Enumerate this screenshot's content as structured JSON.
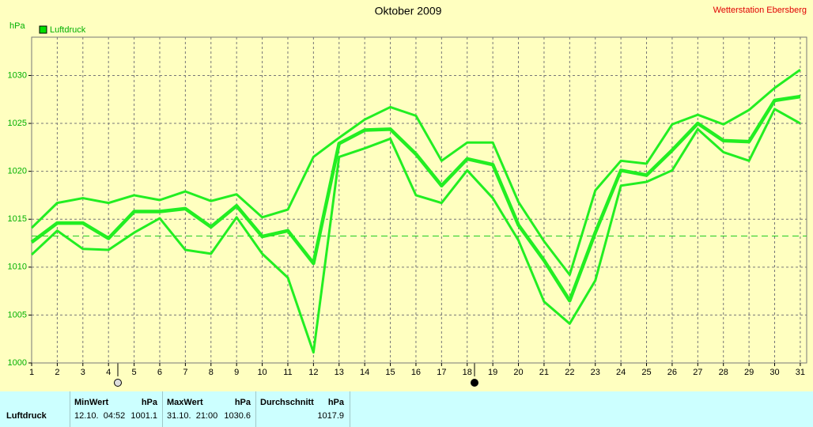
{
  "chart_data": {
    "type": "line",
    "title": "Oktober 2009",
    "station": "Wetterstation Ebersberg",
    "y_label": "hPa",
    "legend": "Luftdruck",
    "legend_color": "#00e000",
    "x": [
      1,
      2,
      3,
      4,
      5,
      6,
      7,
      8,
      9,
      10,
      11,
      12,
      13,
      14,
      15,
      16,
      17,
      18,
      19,
      20,
      21,
      22,
      23,
      24,
      25,
      26,
      27,
      28,
      29,
      30,
      31
    ],
    "xlim": [
      1,
      31.25
    ],
    "ylim": [
      1000,
      1034
    ],
    "yticks": [
      1000,
      1005,
      1010,
      1015,
      1020,
      1025,
      1030
    ],
    "grid": true,
    "reference_line": 1013.25,
    "series": [
      {
        "color": "#22ee22",
        "width": 3,
        "values": [
          1014.1,
          1016.7,
          1017.2,
          1016.7,
          1017.5,
          1017.0,
          1017.9,
          1016.9,
          1017.6,
          1015.2,
          1016.0,
          1021.5,
          1023.5,
          1025.4,
          1026.7,
          1025.8,
          1021.1,
          1023.0,
          1023.0,
          1016.8,
          1012.7,
          1009.2,
          1018.0,
          1021.1,
          1020.8,
          1024.9,
          1025.9,
          1024.9,
          1026.4,
          1028.7,
          1030.6
        ]
      },
      {
        "color": "#22ee22",
        "width": 4.5,
        "values": [
          1012.6,
          1014.6,
          1014.6,
          1013.0,
          1015.8,
          1015.8,
          1016.1,
          1014.2,
          1016.4,
          1013.2,
          1013.8,
          1010.4,
          1022.9,
          1024.3,
          1024.4,
          1021.8,
          1018.5,
          1021.3,
          1020.7,
          1014.4,
          1010.7,
          1006.5,
          1013.6,
          1020.1,
          1019.6,
          1022.2,
          1025.0,
          1023.2,
          1023.1,
          1027.4,
          1027.8
        ]
      },
      {
        "color": "#22ee22",
        "width": 3,
        "values": [
          1011.3,
          1013.8,
          1011.9,
          1011.8,
          1013.6,
          1015.1,
          1011.8,
          1011.4,
          1015.2,
          1011.4,
          1008.9,
          1001.1,
          1021.5,
          1022.4,
          1023.4,
          1017.5,
          1016.7,
          1020.1,
          1017.2,
          1012.8,
          1006.4,
          1004.1,
          1008.6,
          1018.5,
          1018.9,
          1020.1,
          1024.4,
          1022.0,
          1021.1,
          1026.5,
          1025.0
        ]
      }
    ]
  },
  "table": {
    "headers": [
      [
        "MinWert",
        "hPa"
      ],
      [
        "MaxWert",
        "hPa"
      ],
      [
        "Durchschnitt",
        "hPa"
      ]
    ],
    "row_label": "Luftdruck",
    "cells": [
      [
        "12.10.  04:52",
        "1001.1"
      ],
      [
        "31.10.  21:00",
        "1030.6"
      ],
      [
        "",
        "1017.9"
      ]
    ]
  }
}
